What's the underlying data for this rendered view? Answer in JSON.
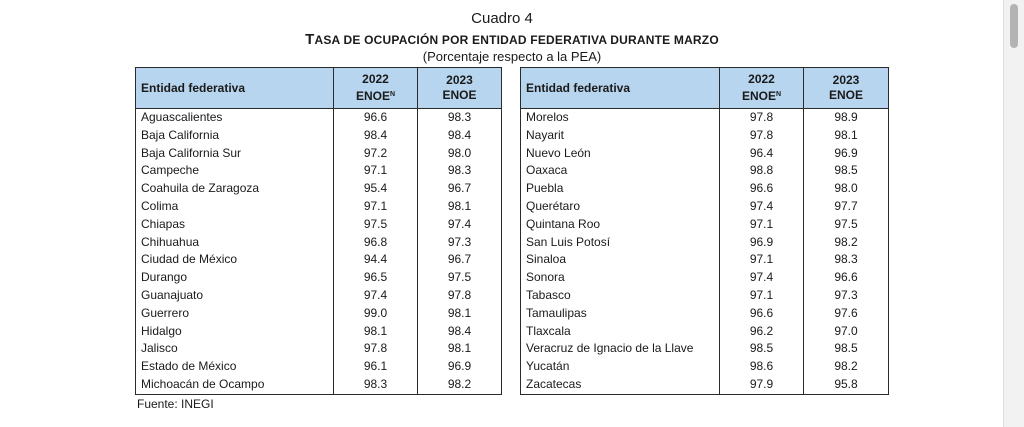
{
  "caption": "Cuadro 4",
  "title": {
    "part1_initial": "T",
    "part1_rest": "ASA DE OCUPACIÓN POR ENTIDAD FEDERATIVA DURANTE MARZO"
  },
  "subtitle": "(Porcentaje respecto a la PEA)",
  "table": {
    "headers": {
      "entity": "Entidad federativa",
      "y2022": "2022",
      "y2022_label": "ENOE",
      "y2022_sup": "N",
      "y2023": "2023",
      "y2023_label": "ENOE"
    },
    "left_rows": [
      {
        "name": "Aguascalientes",
        "v2022": "96.6",
        "v2023": "98.3"
      },
      {
        "name": "Baja California",
        "v2022": "98.4",
        "v2023": "98.4"
      },
      {
        "name": "Baja California Sur",
        "v2022": "97.2",
        "v2023": "98.0"
      },
      {
        "name": "Campeche",
        "v2022": "97.1",
        "v2023": "98.3"
      },
      {
        "name": "Coahuila de Zaragoza",
        "v2022": "95.4",
        "v2023": "96.7"
      },
      {
        "name": "Colima",
        "v2022": "97.1",
        "v2023": "98.1"
      },
      {
        "name": "Chiapas",
        "v2022": "97.5",
        "v2023": "97.4"
      },
      {
        "name": "Chihuahua",
        "v2022": "96.8",
        "v2023": "97.3"
      },
      {
        "name": "Ciudad de México",
        "v2022": "94.4",
        "v2023": "96.7"
      },
      {
        "name": "Durango",
        "v2022": "96.5",
        "v2023": "97.5"
      },
      {
        "name": "Guanajuato",
        "v2022": "97.4",
        "v2023": "97.8"
      },
      {
        "name": "Guerrero",
        "v2022": "99.0",
        "v2023": "98.1"
      },
      {
        "name": "Hidalgo",
        "v2022": "98.1",
        "v2023": "98.4"
      },
      {
        "name": "Jalisco",
        "v2022": "97.8",
        "v2023": "98.1"
      },
      {
        "name": "Estado de México",
        "v2022": "96.1",
        "v2023": "96.9"
      },
      {
        "name": "Michoacán de Ocampo",
        "v2022": "98.3",
        "v2023": "98.2"
      }
    ],
    "right_rows": [
      {
        "name": "Morelos",
        "v2022": "97.8",
        "v2023": "98.9"
      },
      {
        "name": "Nayarit",
        "v2022": "97.8",
        "v2023": "98.1"
      },
      {
        "name": "Nuevo León",
        "v2022": "96.4",
        "v2023": "96.9"
      },
      {
        "name": "Oaxaca",
        "v2022": "98.8",
        "v2023": "98.5"
      },
      {
        "name": "Puebla",
        "v2022": "96.6",
        "v2023": "98.0"
      },
      {
        "name": "Querétaro",
        "v2022": "97.4",
        "v2023": "97.7"
      },
      {
        "name": "Quintana Roo",
        "v2022": "97.1",
        "v2023": "97.5"
      },
      {
        "name": "San Luis Potosí",
        "v2022": "96.9",
        "v2023": "98.2"
      },
      {
        "name": "Sinaloa",
        "v2022": "97.1",
        "v2023": "98.3"
      },
      {
        "name": "Sonora",
        "v2022": "97.4",
        "v2023": "96.6"
      },
      {
        "name": "Tabasco",
        "v2022": "97.1",
        "v2023": "97.3"
      },
      {
        "name": "Tamaulipas",
        "v2022": "96.6",
        "v2023": "97.6"
      },
      {
        "name": "Tlaxcala",
        "v2022": "96.2",
        "v2023": "97.0"
      },
      {
        "name": "Veracruz de Ignacio de la Llave",
        "v2022": "98.5",
        "v2023": "98.5"
      },
      {
        "name": "Yucatán",
        "v2022": "98.6",
        "v2023": "98.2"
      },
      {
        "name": "Zacatecas",
        "v2022": "97.9",
        "v2023": "95.8"
      }
    ]
  },
  "source": "Fuente: INEGI",
  "colors": {
    "header_fill": "#b7d5ee",
    "border": "#2b2b2b"
  }
}
